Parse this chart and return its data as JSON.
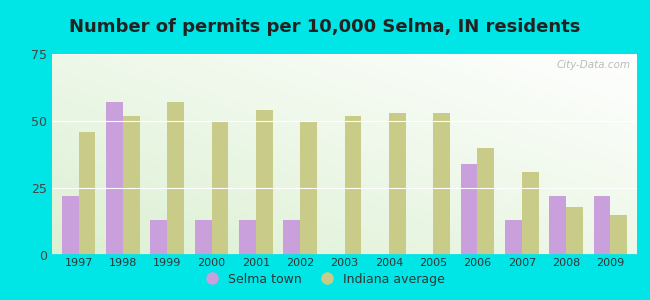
{
  "title": "Number of permits per 10,000 Selma, IN residents",
  "years": [
    1997,
    1998,
    1999,
    2000,
    2001,
    2002,
    2003,
    2004,
    2005,
    2006,
    2007,
    2008,
    2009
  ],
  "selma": [
    22,
    57,
    13,
    13,
    13,
    13,
    0,
    0,
    0,
    34,
    13,
    22,
    22
  ],
  "indiana": [
    46,
    52,
    57,
    50,
    54,
    50,
    52,
    53,
    53,
    40,
    31,
    18,
    15
  ],
  "selma_color": "#c9a0dc",
  "indiana_color": "#c8cc88",
  "ylim": [
    0,
    75
  ],
  "yticks": [
    0,
    25,
    50,
    75
  ],
  "bar_width": 0.38,
  "background_outer": "#00e5e5",
  "legend_selma": "Selma town",
  "legend_indiana": "Indiana average",
  "title_fontsize": 13,
  "watermark": "City-Data.com"
}
